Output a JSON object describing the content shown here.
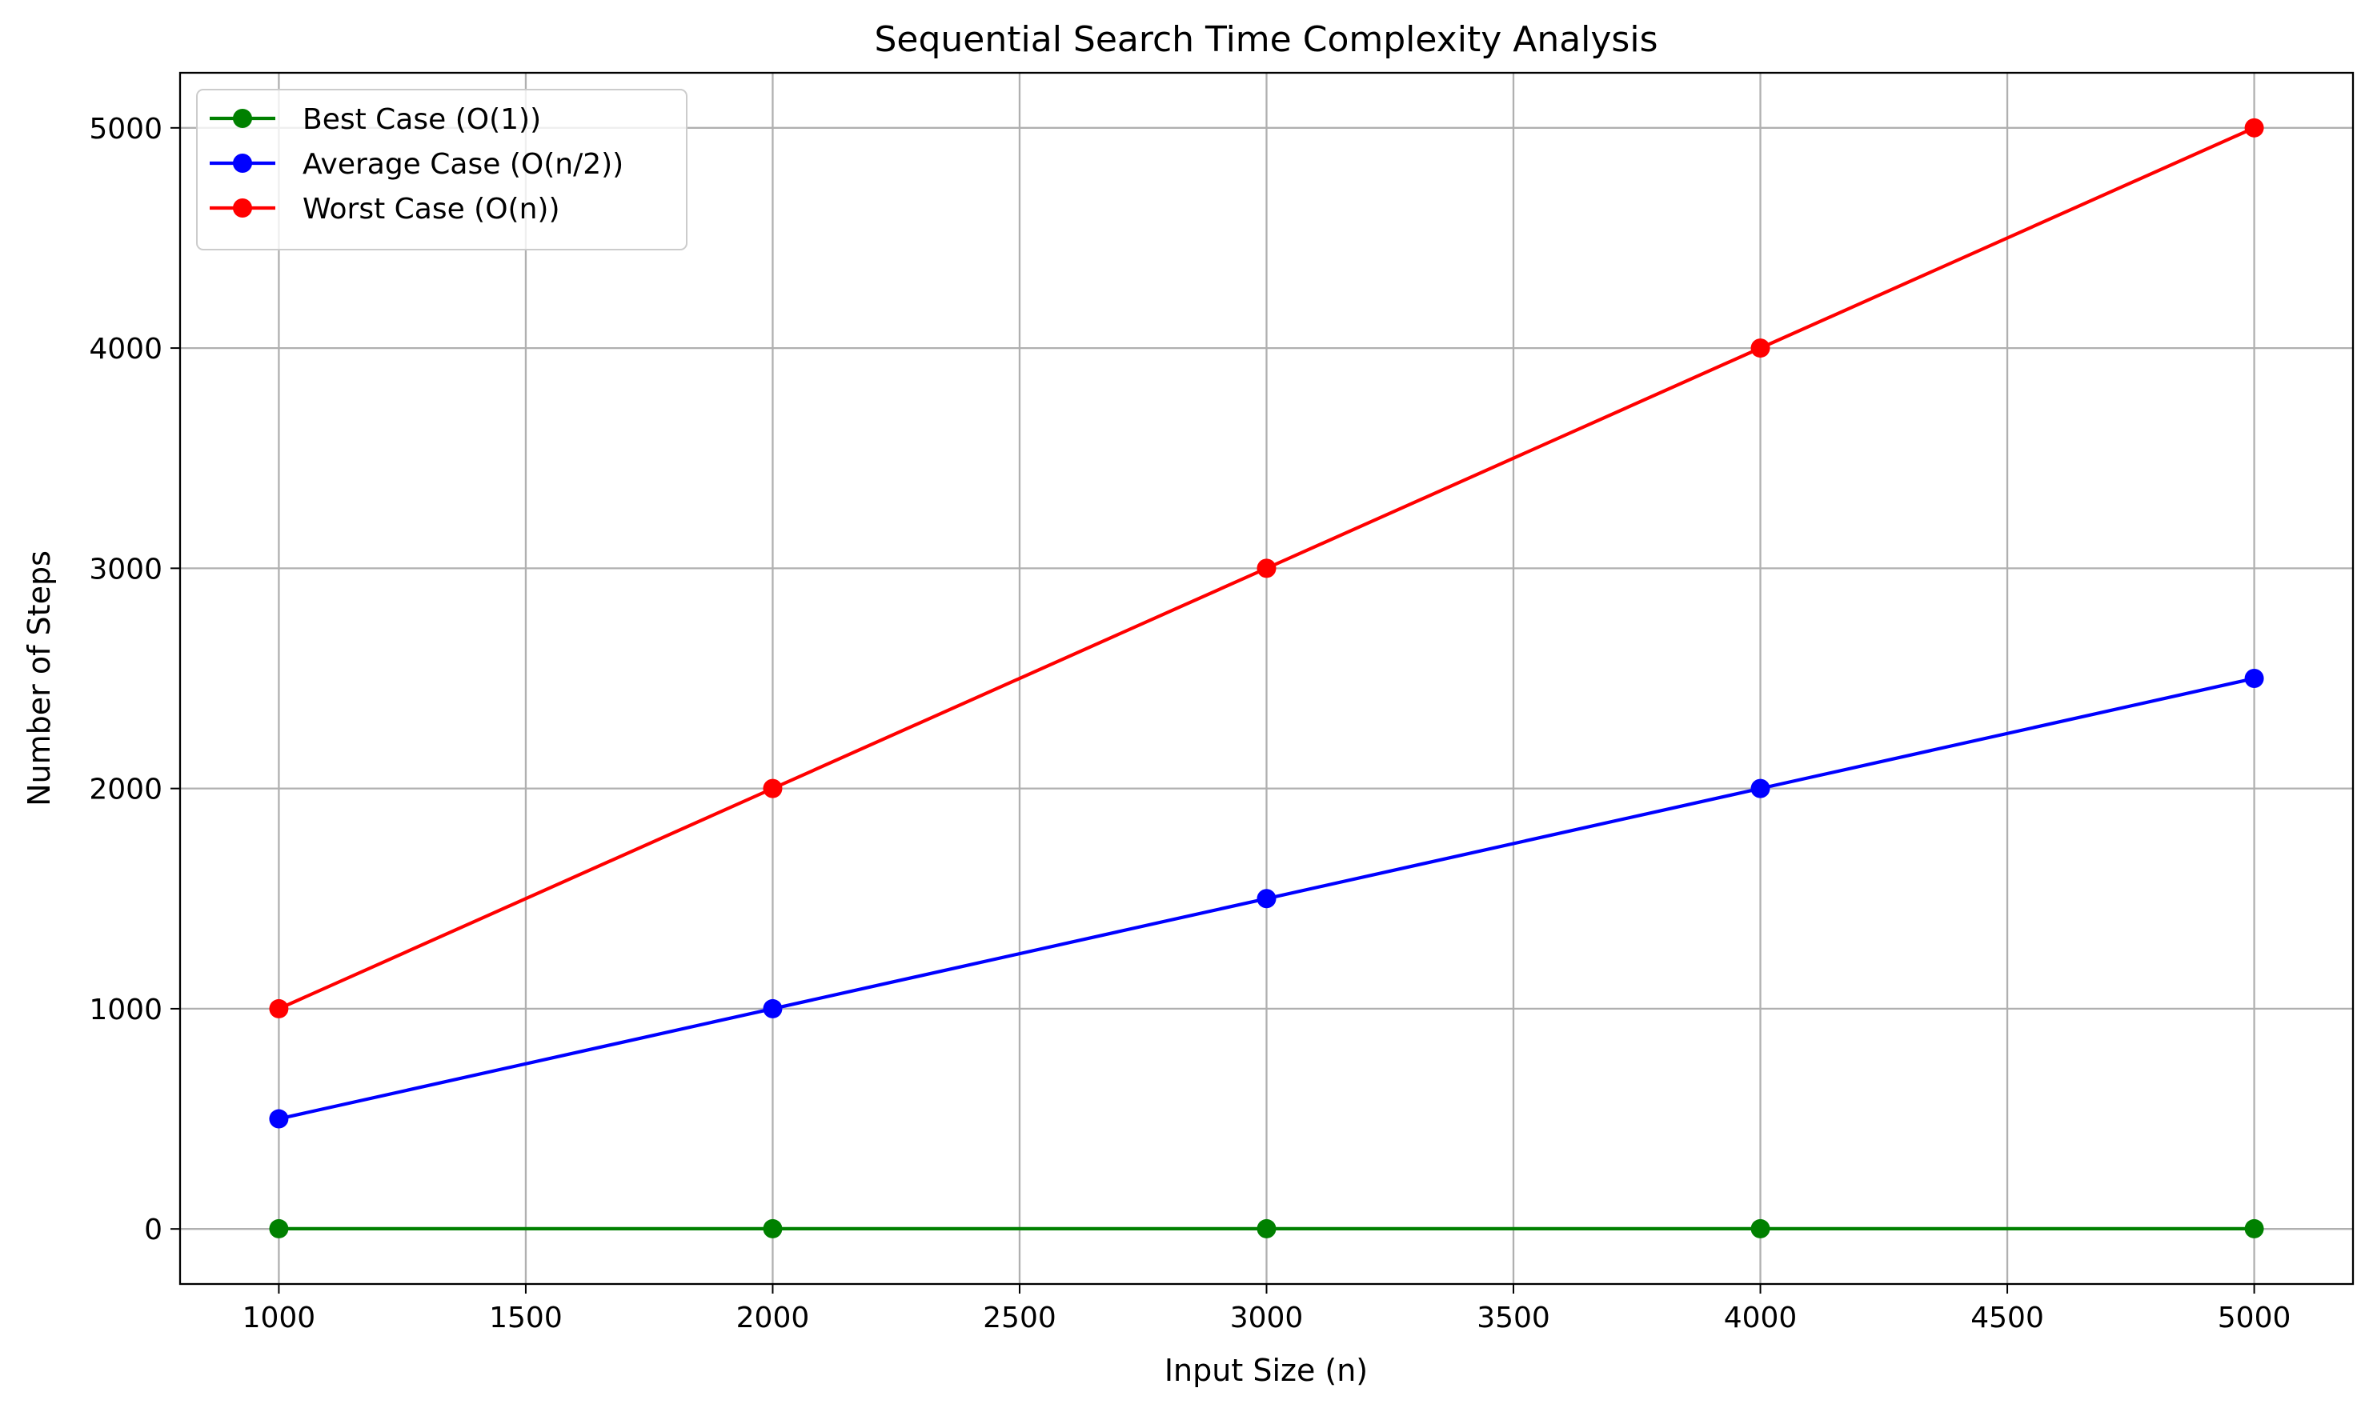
{
  "chart_data": {
    "type": "line",
    "title": "Sequential Search Time Complexity Analysis",
    "xlabel": "Input Size (n)",
    "ylabel": "Number of Steps",
    "x": [
      1000,
      2000,
      3000,
      4000,
      5000
    ],
    "xlim": [
      800,
      5200
    ],
    "ylim": [
      -250,
      5250
    ],
    "x_ticks": [
      1000,
      1500,
      2000,
      2500,
      3000,
      3500,
      4000,
      4500,
      5000
    ],
    "y_ticks": [
      0,
      1000,
      2000,
      3000,
      4000,
      5000
    ],
    "grid": true,
    "legend_position": "top-left",
    "series": [
      {
        "name": "Best Case (O(1))",
        "values": [
          1,
          1,
          1,
          1,
          1
        ],
        "color": "#008000",
        "marker": "circle"
      },
      {
        "name": "Average Case (O(n/2))",
        "values": [
          500,
          1000,
          1500,
          2000,
          2500
        ],
        "color": "#0000ff",
        "marker": "circle"
      },
      {
        "name": "Worst Case (O(n))",
        "values": [
          1000,
          2000,
          3000,
          4000,
          5000
        ],
        "color": "#ff0000",
        "marker": "circle"
      }
    ]
  }
}
